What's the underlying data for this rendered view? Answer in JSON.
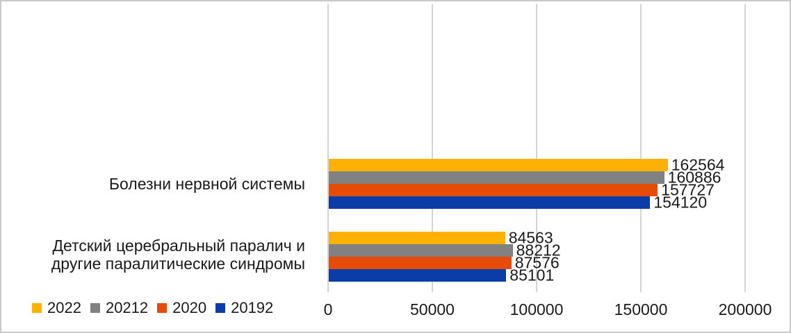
{
  "chart_data": {
    "type": "bar",
    "orientation": "horizontal",
    "title": "",
    "categories": [
      "Болезни нервной системы",
      "Детский церебральный паралич и другие паралитические синдромы"
    ],
    "series": [
      {
        "name": "2022",
        "color": "#FFB005",
        "values": [
          162564,
          84563
        ]
      },
      {
        "name": "20212",
        "color": "#818181",
        "values": [
          160886,
          88212
        ]
      },
      {
        "name": "2020",
        "color": "#E64B07",
        "values": [
          157727,
          87576
        ]
      },
      {
        "name": "20192",
        "color": "#0B3DA8",
        "values": [
          154120,
          85101
        ]
      }
    ],
    "xlim": [
      0,
      200000
    ],
    "x_ticks": [
      0,
      50000,
      100000,
      150000,
      200000
    ],
    "x_tick_labels": [
      "0",
      "50000",
      "100000",
      "150000",
      "200000"
    ],
    "grid": "vertical-major-only",
    "data_labels": "outside-end",
    "legend_position": "bottom-left",
    "series_order_in_group": "top-to-bottom as listed"
  },
  "colors": {
    "background": "#FFFFFF",
    "border": "#C8C8C8",
    "grid": "#D3D3D3",
    "text": "#1A1A1A"
  }
}
